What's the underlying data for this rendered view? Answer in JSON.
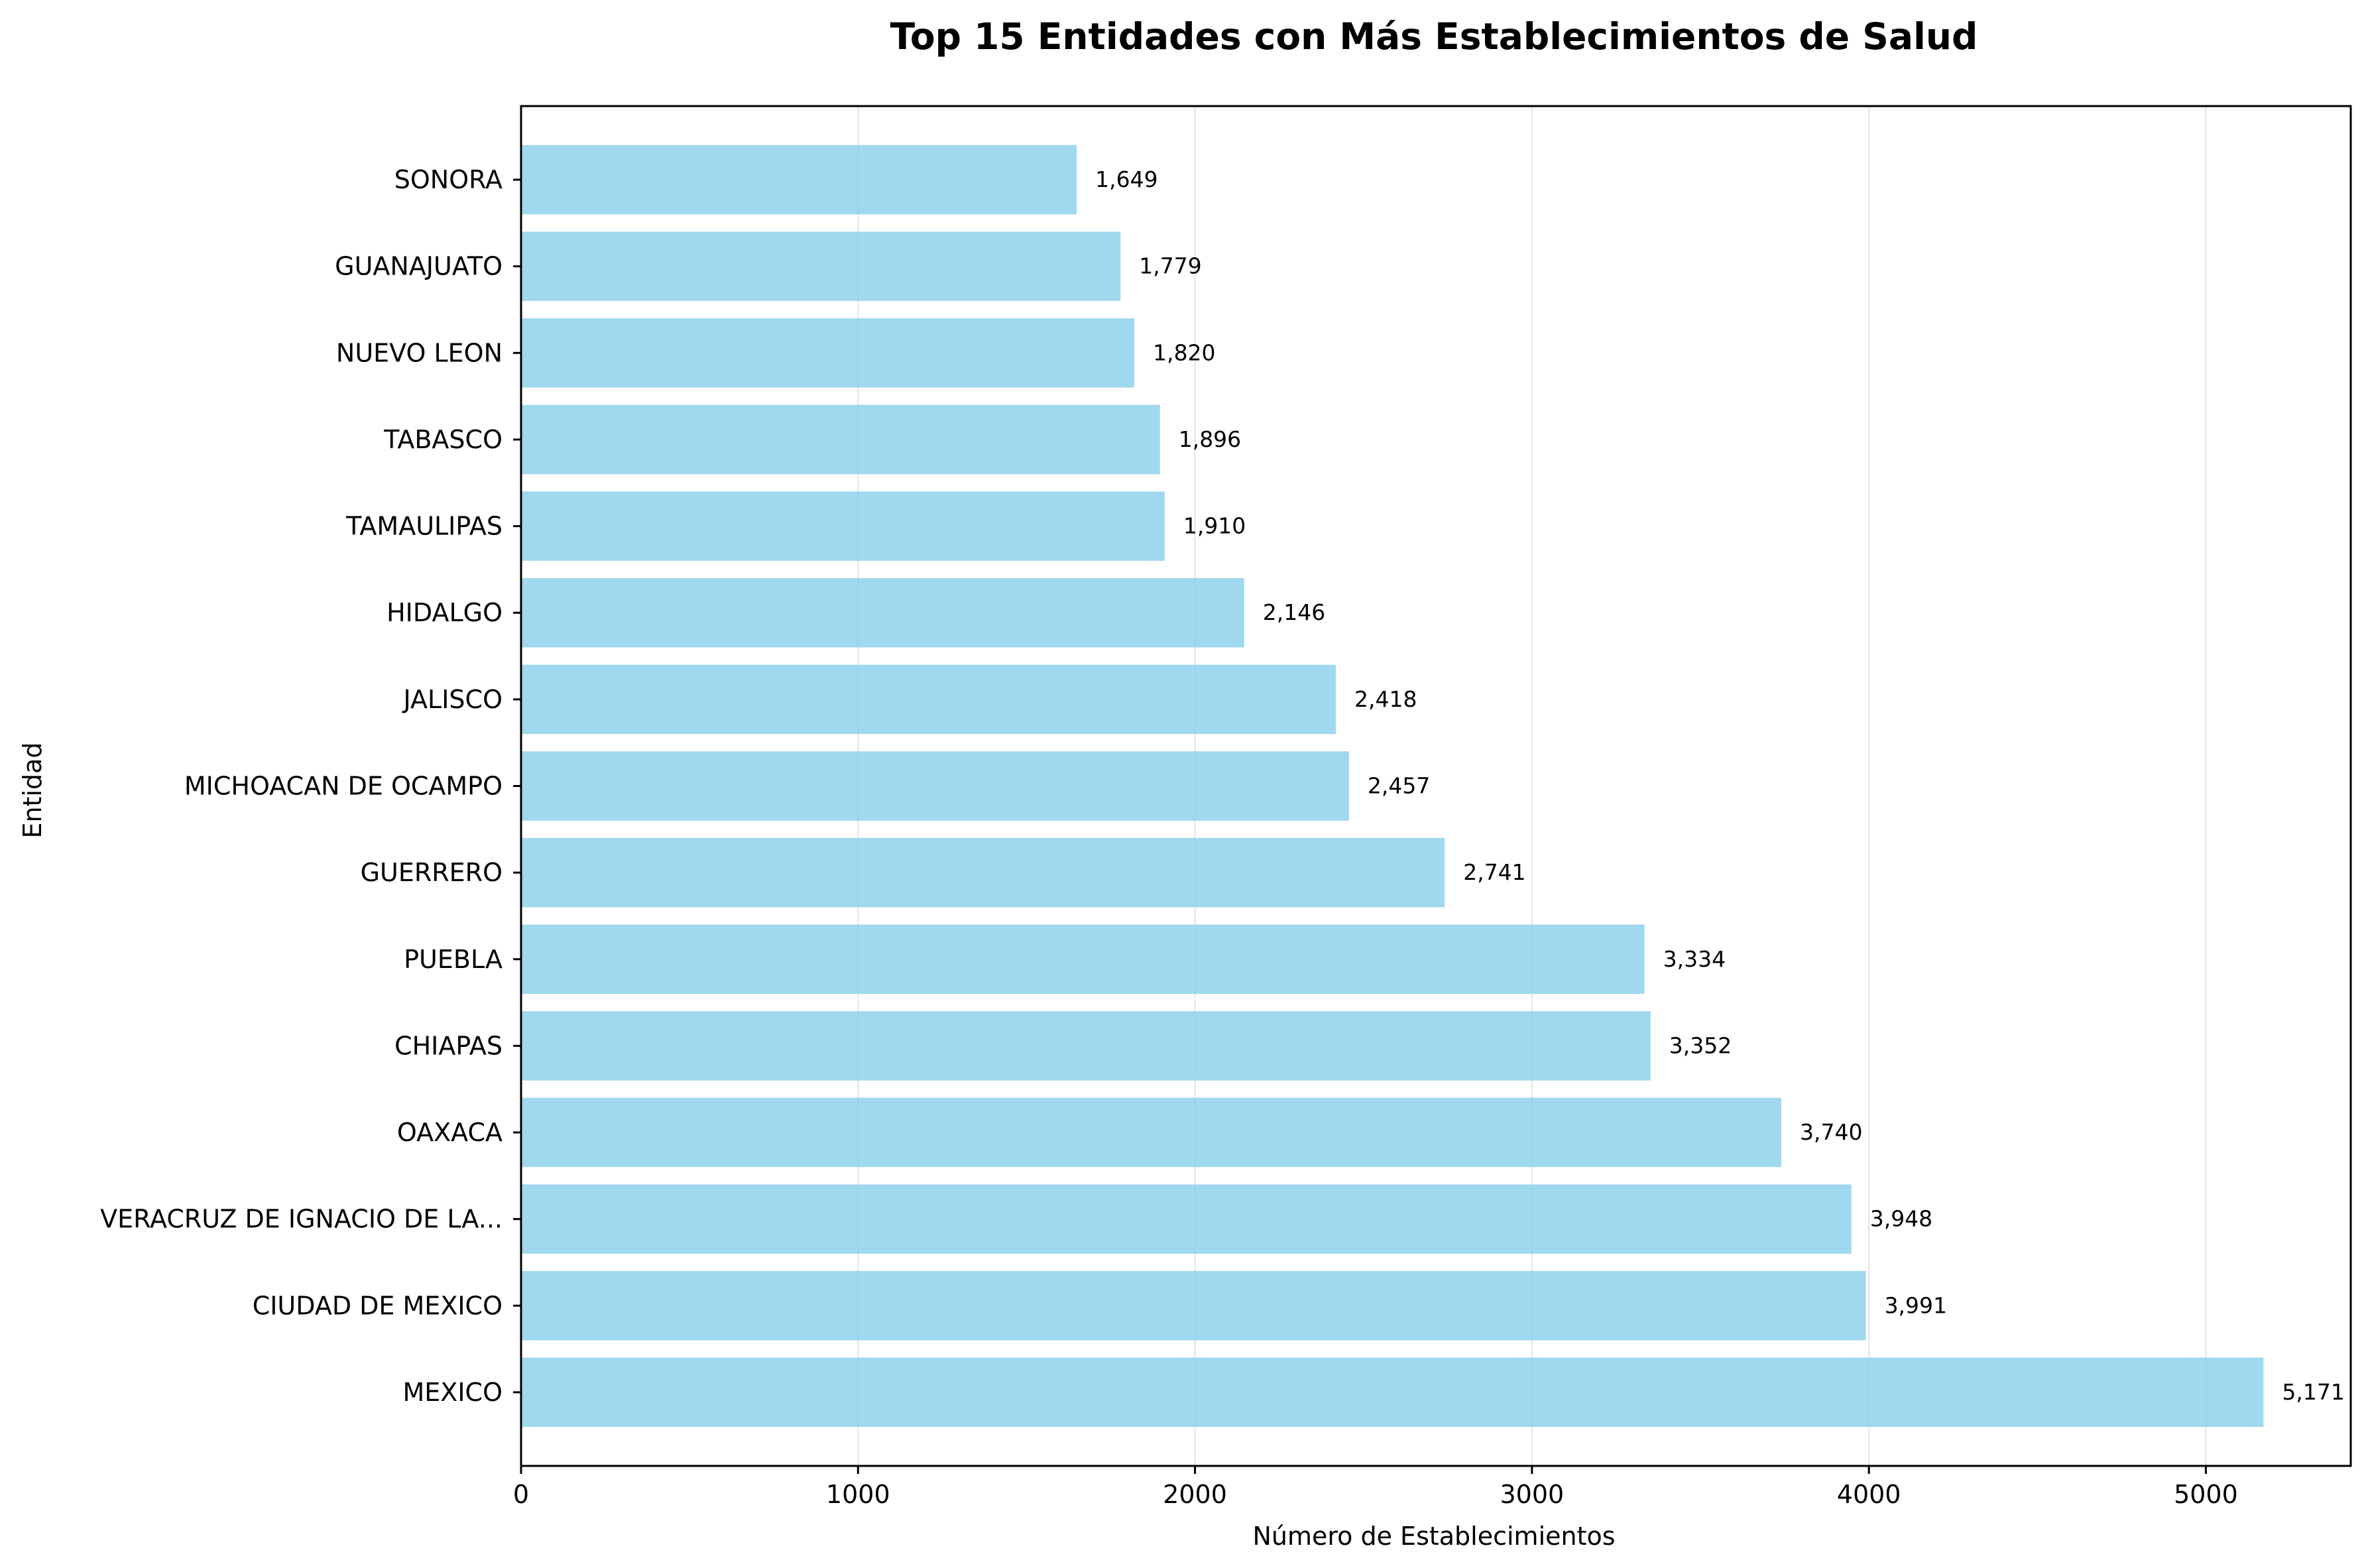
{
  "chart_data": {
    "type": "bar",
    "orientation": "horizontal",
    "title": "Top 15 Entidades con Más Establecimientos de Salud",
    "xlabel": "Número de Establecimientos",
    "ylabel": "Entidad",
    "xlim": [
      0,
      5430
    ],
    "xticks": [
      0,
      1000,
      2000,
      3000,
      4000,
      5000
    ],
    "grid": "x",
    "bar_color": "#87ceeb",
    "categories": [
      "SONORA",
      "GUANAJUATO",
      "NUEVO LEON",
      "TABASCO",
      "TAMAULIPAS",
      "HIDALGO",
      "JALISCO",
      "MICHOACAN DE OCAMPO",
      "GUERRERO",
      "PUEBLA",
      "CHIAPAS",
      "OAXACA",
      "VERACRUZ DE IGNACIO DE LA...",
      "CIUDAD DE MEXICO",
      "MEXICO"
    ],
    "values": [
      1649,
      1779,
      1820,
      1896,
      1910,
      2146,
      2418,
      2457,
      2741,
      3334,
      3352,
      3740,
      3948,
      3991,
      5171
    ],
    "value_labels": [
      "1,649",
      "1,779",
      "1,820",
      "1,896",
      "1,910",
      "2,146",
      "2,418",
      "2,457",
      "2,741",
      "3,334",
      "3,352",
      "3,740",
      "3,948",
      "3,991",
      "5,171"
    ]
  }
}
